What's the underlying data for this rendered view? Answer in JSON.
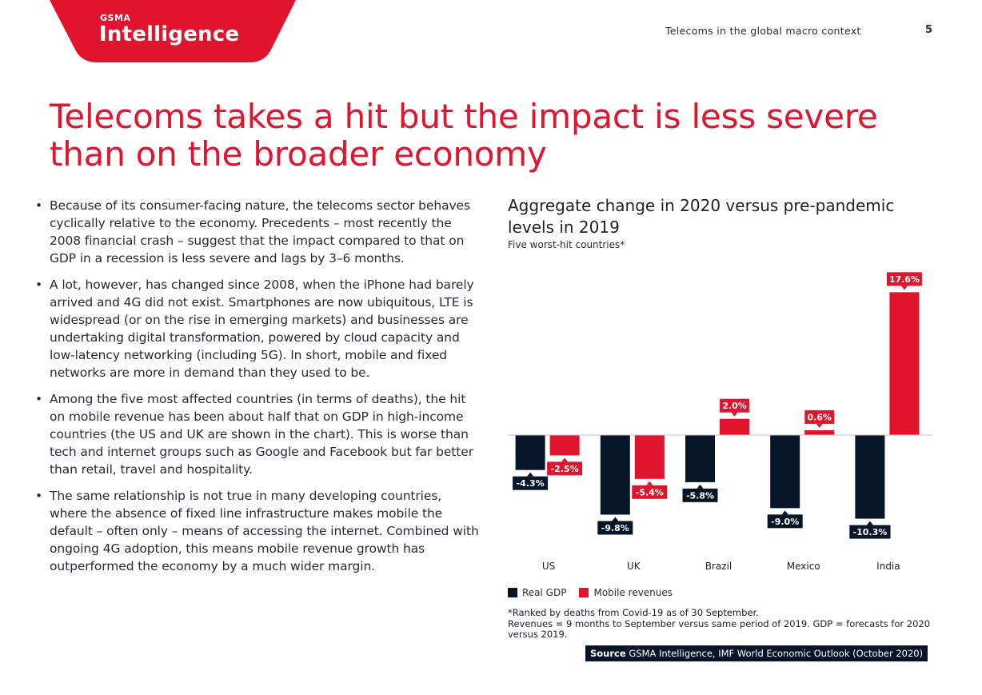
{
  "header": {
    "logo_top": "GSMA",
    "logo_main": "Intelligence",
    "section": "Telecoms in the global macro context",
    "page_number": "5"
  },
  "title": "Telecoms takes a hit but the impact is less severe than on the broader economy",
  "bullets": [
    "Because of its consumer-facing nature, the telecoms sector behaves cyclically relative to the economy. Precedents – most recently the 2008 financial crash – suggest that the impact compared to that on GDP in a recession is less severe and lags by 3–6 months.",
    "A lot, however, has changed since 2008, when the iPhone had barely arrived and 4G did not exist. Smartphones are now ubiquitous, LTE is widespread (or on the rise in emerging markets) and businesses are undertaking digital transformation, powered by cloud capacity and low-latency networking (including 5G). In short, mobile and fixed networks are more in demand than they used to be.",
    "Among the five most affected countries (in terms of deaths), the hit on mobile revenue has been about half that on GDP in high-income countries (the US and UK are shown in the chart). This is worse than tech and internet groups such as Google and Facebook but far better than retail, travel and hospitality.",
    "The same relationship is not true in many developing countries, where the absence of fixed line infrastructure makes mobile the default – often only – means of accessing the internet. Combined with ongoing 4G adoption, this means mobile revenue growth has outperformed the economy by a much wider margin."
  ],
  "bullet_symbol": "•",
  "chart_data": {
    "type": "bar",
    "title": "Aggregate change in 2020 versus pre-pandemic levels in 2019",
    "subtitle": "Five worst-hit countries*",
    "categories": [
      "US",
      "UK",
      "Brazil",
      "Mexico",
      "India"
    ],
    "series": [
      {
        "name": "Real GDP",
        "color": "#071528",
        "values": [
          -4.3,
          -9.8,
          -5.8,
          -9.0,
          -10.3
        ],
        "labels": [
          "-4.3%",
          "-9.8%",
          "-5.8%",
          "-9.0%",
          "-10.3%"
        ]
      },
      {
        "name": "Mobile revenues",
        "color": "#e0142d",
        "values": [
          -2.5,
          -5.4,
          2.0,
          0.6,
          17.6
        ],
        "labels": [
          "-2.5%",
          "-5.4%",
          "2.0%",
          "0.6%",
          "17.6%"
        ]
      }
    ],
    "ylim": [
      -12,
      18
    ],
    "legend_position": "bottom-left",
    "grid": false
  },
  "footnote_lines": [
    "*Ranked by deaths from Covid-19 as of 30 September.",
    "Revenues = 9 months to September versus same period of 2019. GDP = forecasts for 2020 versus 2019."
  ],
  "source": {
    "label": "Source",
    "text": "GSMA Intelligence, IMF World Economic Outlook (October 2020)"
  },
  "colors": {
    "brand_red": "#e0142d",
    "navy": "#071528"
  }
}
